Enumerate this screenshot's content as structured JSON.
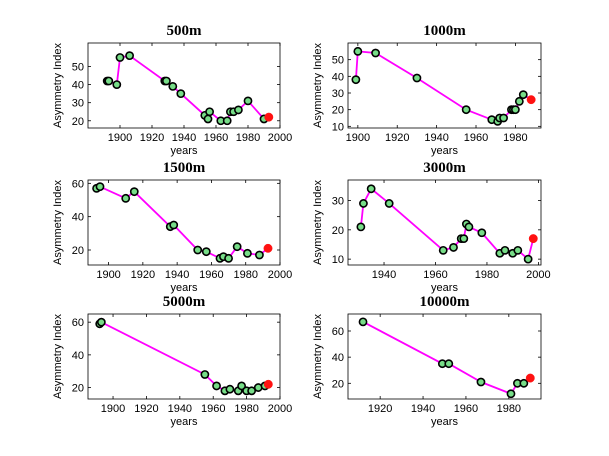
{
  "chart_data": [
    {
      "type": "line",
      "title": "500m",
      "xlabel": "years",
      "ylabel": "Asymmetry Index",
      "xlim": [
        1880,
        2000
      ],
      "ylim": [
        16,
        63
      ],
      "xticks": [
        1900,
        1920,
        1940,
        1960,
        1980,
        2000
      ],
      "yticks": [
        20,
        30,
        40,
        50
      ],
      "x": [
        1892,
        1893,
        1898,
        1900,
        1906,
        1928,
        1929,
        1933,
        1938,
        1953,
        1955,
        1956,
        1963,
        1967,
        1969,
        1971,
        1974,
        1980,
        1990,
        1993
      ],
      "y": [
        42,
        42,
        40,
        55,
        56,
        42,
        42,
        39,
        35,
        23,
        21,
        25,
        20,
        20,
        25,
        25,
        26,
        31,
        21,
        22
      ],
      "highlight": {
        "x": 1993,
        "y": 22
      }
    },
    {
      "type": "line",
      "title": "1000m",
      "xlabel": "years",
      "ylabel": "Asymmetry Index",
      "xlim": [
        1895,
        1993
      ],
      "ylim": [
        9,
        60
      ],
      "xticks": [
        1900,
        1920,
        1940,
        1960,
        1980
      ],
      "yticks": [
        10,
        20,
        30,
        40,
        50
      ],
      "x": [
        1899,
        1900,
        1909,
        1930,
        1955,
        1968,
        1971,
        1972,
        1974,
        1978,
        1979,
        1980,
        1982,
        1984,
        1988
      ],
      "y": [
        38,
        55,
        54,
        39,
        20,
        14,
        13,
        15,
        15,
        20,
        20,
        20,
        25,
        29,
        26
      ],
      "highlight": {
        "x": 1988,
        "y": 26
      }
    },
    {
      "type": "line",
      "title": "1500m",
      "xlabel": "years",
      "ylabel": "Asymmetry Index",
      "xlim": [
        1888,
        2000
      ],
      "ylim": [
        11,
        62
      ],
      "xticks": [
        1900,
        1920,
        1940,
        1960,
        1980,
        2000
      ],
      "yticks": [
        20,
        40,
        60
      ],
      "x": [
        1893,
        1895,
        1910,
        1915,
        1936,
        1938,
        1952,
        1957,
        1965,
        1967,
        1970,
        1975,
        1981,
        1988,
        1993
      ],
      "y": [
        57,
        58,
        51,
        55,
        34,
        35,
        20,
        19,
        15,
        16,
        15,
        22,
        18,
        17,
        21
      ],
      "highlight": {
        "x": 1993,
        "y": 21
      }
    },
    {
      "type": "line",
      "title": "3000m",
      "xlabel": "years",
      "ylabel": "Asymmetry Index",
      "xlim": [
        1926,
        2001
      ],
      "ylim": [
        8,
        37
      ],
      "xticks": [
        1940,
        1960,
        1980,
        2000
      ],
      "yticks": [
        10,
        20,
        30
      ],
      "x": [
        1931,
        1932,
        1935,
        1942,
        1963,
        1967,
        1970,
        1971,
        1972,
        1973,
        1978,
        1985,
        1987,
        1990,
        1992,
        1996,
        1998
      ],
      "y": [
        21,
        29,
        34,
        29,
        13,
        14,
        17,
        17,
        22,
        21,
        19,
        12,
        13,
        12,
        13,
        10,
        17
      ],
      "highlight": {
        "x": 1998,
        "y": 17
      }
    },
    {
      "type": "line",
      "title": "5000m",
      "xlabel": "years",
      "ylabel": "Asymmetry Index",
      "xlim": [
        1885,
        2000
      ],
      "ylim": [
        13,
        65
      ],
      "xticks": [
        1900,
        1920,
        1940,
        1960,
        1980,
        2000
      ],
      "yticks": [
        20,
        40,
        60
      ],
      "x": [
        1892,
        1893,
        1955,
        1962,
        1967,
        1970,
        1975,
        1977,
        1980,
        1983,
        1987,
        1991,
        1993
      ],
      "y": [
        59,
        60,
        28,
        21,
        18,
        19,
        18,
        21,
        18,
        18,
        20,
        21,
        22
      ],
      "highlight": {
        "x": 1993,
        "y": 22
      }
    },
    {
      "type": "line",
      "title": "10000m",
      "xlabel": "years",
      "ylabel": "Asymmetry Index",
      "xlim": [
        1905,
        1995
      ],
      "ylim": [
        8,
        73
      ],
      "xticks": [
        1920,
        1940,
        1960,
        1980
      ],
      "yticks": [
        20,
        40,
        60
      ],
      "x": [
        1912,
        1949,
        1952,
        1967,
        1981,
        1984,
        1987,
        1990
      ],
      "y": [
        67,
        35,
        35,
        21,
        12,
        20,
        20,
        24
      ],
      "highlight": {
        "x": 1990,
        "y": 24
      }
    }
  ],
  "colors": {
    "line": "#ff00ff",
    "marker_fill": "#77dd88",
    "marker_edge": "#000000",
    "highlight": "#ff1111"
  }
}
